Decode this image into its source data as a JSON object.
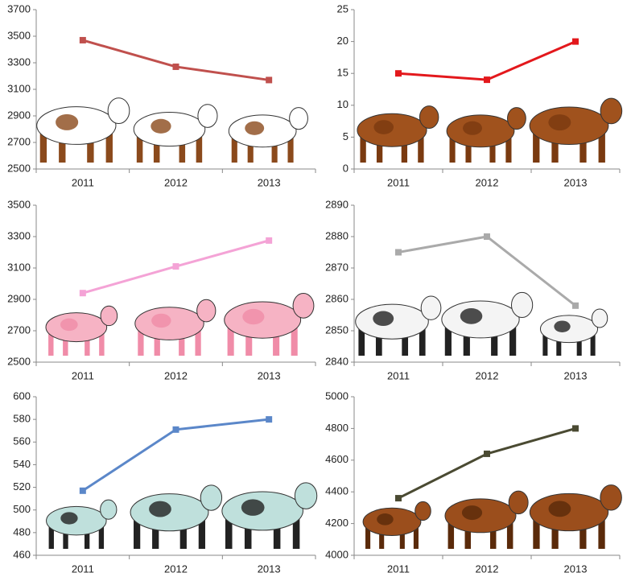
{
  "chart_data": [
    {
      "type": "line",
      "categories": [
        "2011",
        "2012",
        "2013"
      ],
      "values": [
        3470,
        3270,
        3170
      ],
      "color": "#c0504d",
      "ylim": [
        2500,
        3700
      ],
      "yticks": [
        2500,
        2700,
        2900,
        3100,
        3300,
        3500,
        3700
      ]
    },
    {
      "type": "line",
      "categories": [
        "2011",
        "2012",
        "2013"
      ],
      "values": [
        15,
        14,
        20
      ],
      "color": "#e3181c",
      "ylim": [
        0,
        25
      ],
      "yticks": [
        0,
        5,
        10,
        15,
        20,
        25
      ]
    },
    {
      "type": "line",
      "categories": [
        "2011",
        "2012",
        "2013"
      ],
      "values": [
        2940,
        3110,
        3275
      ],
      "color": "#f4a3d6",
      "ylim": [
        2500,
        3500
      ],
      "yticks": [
        2500,
        2700,
        2900,
        3100,
        3300,
        3500
      ]
    },
    {
      "type": "line",
      "categories": [
        "2011",
        "2012",
        "2013"
      ],
      "values": [
        2875,
        2880,
        2858
      ],
      "color": "#aaaaaa",
      "ylim": [
        2840,
        2890
      ],
      "yticks": [
        2840,
        2850,
        2860,
        2870,
        2880,
        2890
      ]
    },
    {
      "type": "line",
      "categories": [
        "2011",
        "2012",
        "2013"
      ],
      "values": [
        517,
        571,
        580
      ],
      "color": "#5b87c9",
      "ylim": [
        460,
        600
      ],
      "yticks": [
        460,
        480,
        500,
        520,
        540,
        560,
        580,
        600
      ]
    },
    {
      "type": "line",
      "categories": [
        "2011",
        "2012",
        "2013"
      ],
      "values": [
        4360,
        4640,
        4800
      ],
      "color": "#4a4a32",
      "ylim": [
        4000,
        5000
      ],
      "yticks": [
        4000,
        4200,
        4400,
        4600,
        4800,
        5000
      ]
    }
  ]
}
